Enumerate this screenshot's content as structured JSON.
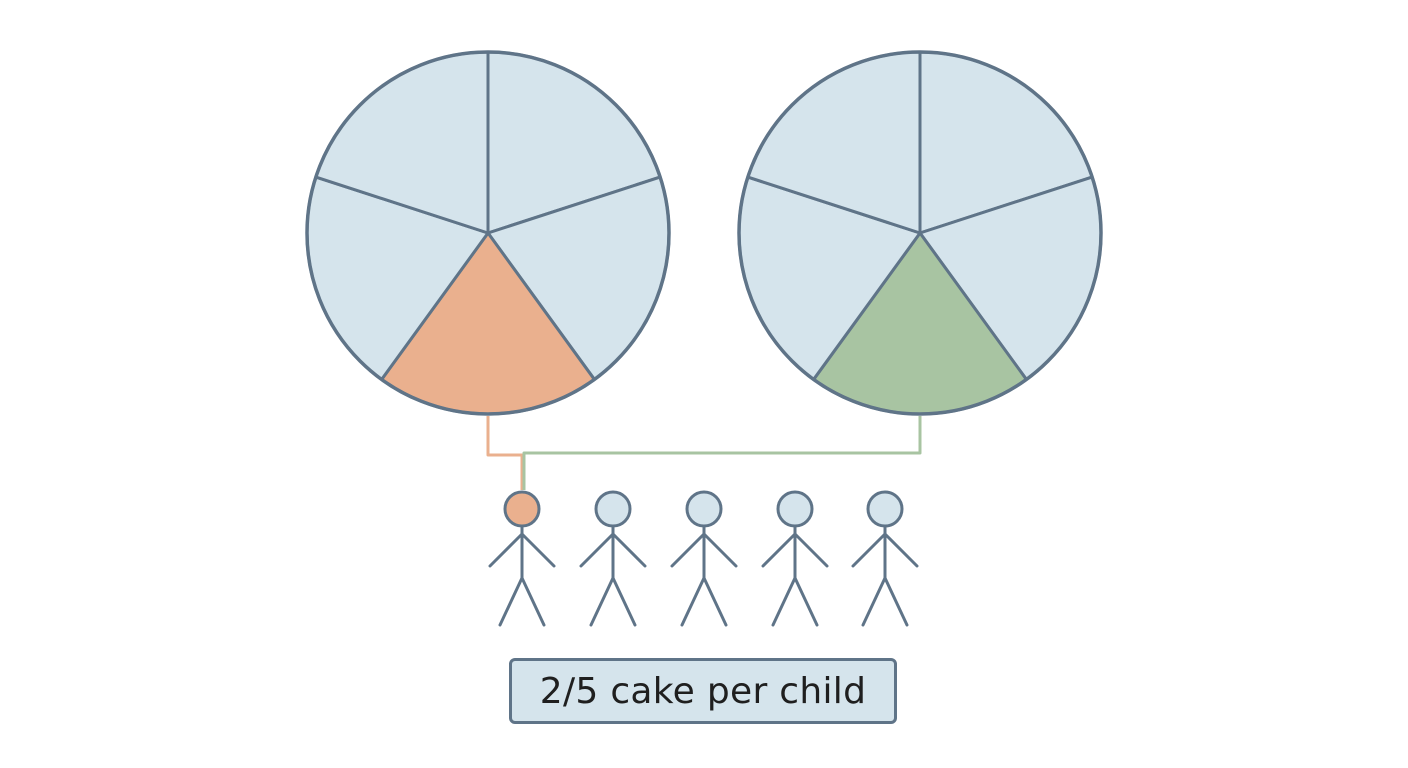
{
  "caption": {
    "text": "2/5 cake per child"
  },
  "diagram": {
    "cakes": [
      {
        "name": "cake-1",
        "slices": 5,
        "highlighted_slice": 3,
        "highlight_color": "#eab08e"
      },
      {
        "name": "cake-2",
        "slices": 5,
        "highlighted_slice": 3,
        "highlight_color": "#a8c4a2"
      }
    ],
    "children_count": 5,
    "highlighted_child": 1,
    "colors": {
      "cake_fill": "#d5e4ec",
      "outline": "#5f7488",
      "child_highlight": "#eab08e",
      "connector_1": "#eab08e",
      "connector_2": "#a8c4a2"
    }
  }
}
